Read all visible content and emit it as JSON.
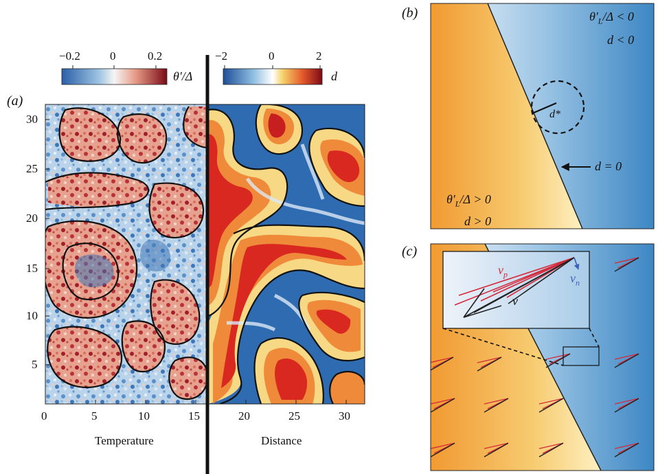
{
  "panels": {
    "a": {
      "label": "(a)"
    },
    "b": {
      "label": "(b)"
    },
    "c": {
      "label": "(c)"
    }
  },
  "colorbars": {
    "temperature": {
      "ticks": [
        "−0.2",
        "0",
        "0.2"
      ],
      "symbol": "θ′/Δ",
      "colors": [
        "#2b5fa8",
        "#f5f5f5",
        "#7a0b18"
      ]
    },
    "distance": {
      "ticks": [
        "−2",
        "0",
        "2"
      ],
      "symbol": "d",
      "colors": [
        "#1f4e96",
        "#ffffff",
        "#f6d26b",
        "#d9281f",
        "#7c0b16"
      ]
    }
  },
  "panel_a": {
    "y_ticks": [
      "30",
      "25",
      "20",
      "15",
      "10",
      "5"
    ],
    "x_ticks": [
      "0",
      "5",
      "10",
      "15",
      "20",
      "25",
      "30"
    ],
    "left_caption": "Temperature",
    "right_caption": "Distance"
  },
  "panel_b": {
    "top_right": {
      "line1_sym": "θ′",
      "line1_sub": "L",
      "line1_rest": "/Δ < 0",
      "line2": "d < 0"
    },
    "bottom_left": {
      "line1_sym": "θ′",
      "line1_sub": "L",
      "line1_rest": "/Δ > 0",
      "line2": "d > 0"
    },
    "interface_label": "d = 0",
    "radius_label": "d*"
  },
  "panel_c": {
    "vp_label": "v",
    "vp_sub": "p",
    "vn_label": "v",
    "vn_sub": "n",
    "v_label": "v",
    "colors": {
      "vp": "#d6293a",
      "vn": "#3b5fb8",
      "v": "#1a1a1a"
    }
  }
}
